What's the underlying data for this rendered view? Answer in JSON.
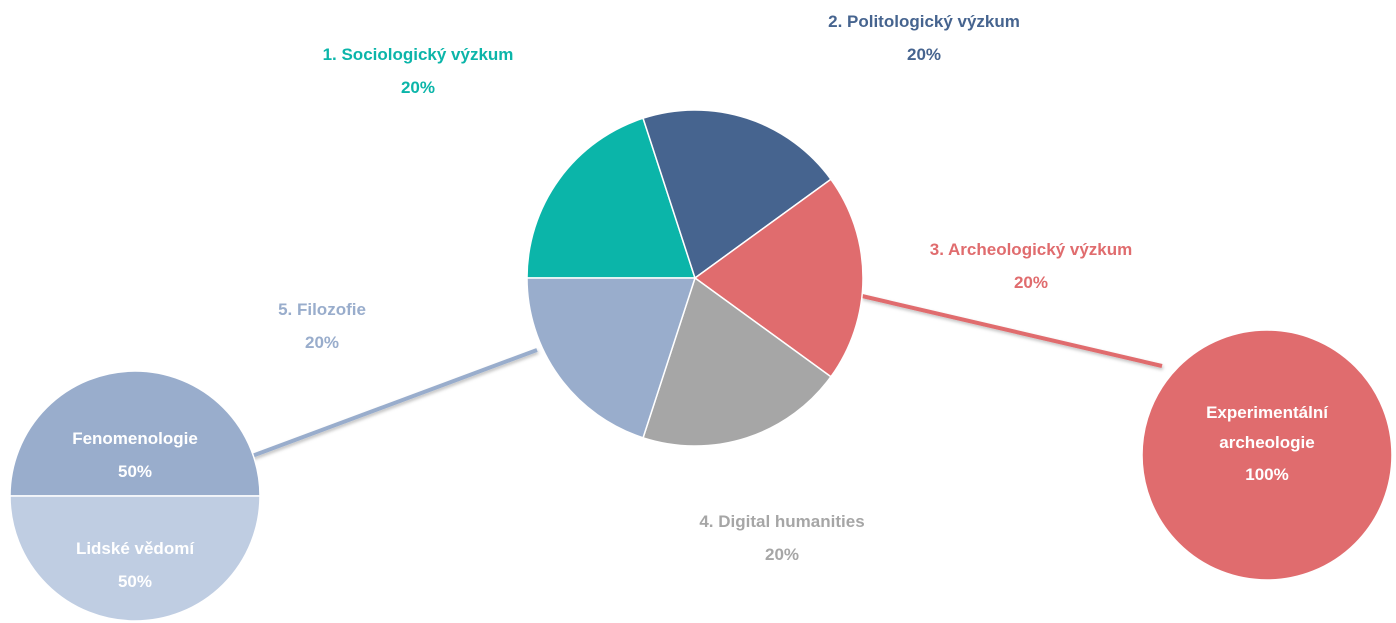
{
  "chart_data": [
    {
      "type": "pie",
      "categories": [
        "1. Sociologický výzkum",
        "2. Politologický výzkum",
        "3. Archeologický výzkum",
        "4. Digital humanities",
        "5. Filozofie"
      ],
      "values": [
        20,
        20,
        20,
        20,
        20
      ],
      "value_labels": [
        "20%",
        "20%",
        "20%",
        "20%",
        "20%"
      ],
      "colors": [
        "#0bb5a9",
        "#46648f",
        "#e06c6e",
        "#a6a6a6",
        "#99adcc"
      ]
    },
    {
      "type": "pie",
      "categories": [
        "Fenomenologie",
        "Lidské vědomí"
      ],
      "values": [
        50,
        50
      ],
      "value_labels": [
        "50%",
        "50%"
      ],
      "colors": [
        "#99adcc",
        "#bfcde2"
      ]
    },
    {
      "type": "pie",
      "categories": [
        "Experimentální archeologie"
      ],
      "values": [
        100
      ],
      "value_labels": [
        "100%"
      ],
      "colors": [
        "#e06c6e"
      ]
    }
  ]
}
